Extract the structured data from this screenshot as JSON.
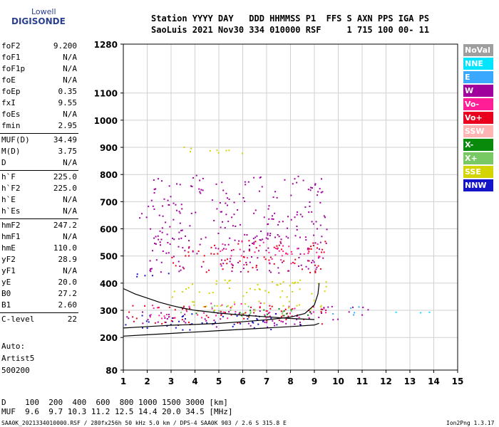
{
  "logo": {
    "line1": "Lowell",
    "line2": "DIGISONDE"
  },
  "header": {
    "line1": "Station YYYY DAY   DDD HHMMSS P1  FFS S AXN PPS IGA PS",
    "line2": "SaoLuis 2021 Nov30 334 010000 RSF     1 715 100 00- 11"
  },
  "params": [
    {
      "name": "foF2",
      "value": "9.200"
    },
    {
      "name": "foF1",
      "value": "N/A"
    },
    {
      "name": "foF1p",
      "value": "N/A"
    },
    {
      "name": "foE",
      "value": "N/A"
    },
    {
      "name": "foEp",
      "value": "0.35"
    },
    {
      "name": "fxI",
      "value": "9.55"
    },
    {
      "name": "foEs",
      "value": "N/A"
    },
    {
      "name": "fmin",
      "value": "2.95"
    },
    {
      "name": "MUF(D)",
      "value": "34.49"
    },
    {
      "name": "M(D)",
      "value": "3.75"
    },
    {
      "name": "D",
      "value": "N/A"
    },
    {
      "name": "h`F",
      "value": "225.0"
    },
    {
      "name": "h`F2",
      "value": "225.0"
    },
    {
      "name": "h`E",
      "value": "N/A"
    },
    {
      "name": "h`Es",
      "value": "N/A"
    },
    {
      "name": "hmF2",
      "value": "247.2"
    },
    {
      "name": "hmF1",
      "value": "N/A"
    },
    {
      "name": "hmE",
      "value": "110.0"
    },
    {
      "name": "yF2",
      "value": "28.9"
    },
    {
      "name": "yF1",
      "value": "N/A"
    },
    {
      "name": "yE",
      "value": "20.0"
    },
    {
      "name": "B0",
      "value": "27.2"
    },
    {
      "name": "B1",
      "value": "2.60"
    },
    {
      "name": "C-level",
      "value": "22"
    }
  ],
  "auto": {
    "l1": "Auto:",
    "l2": "Artist5",
    "l3": "500200"
  },
  "legend": [
    {
      "label": "NoVal",
      "color": "#9e9e9e"
    },
    {
      "label": "NNE",
      "color": "#00e5ff"
    },
    {
      "label": "E",
      "color": "#3aa8ff"
    },
    {
      "label": "W",
      "color": "#a0009c"
    },
    {
      "label": "Vo-",
      "color": "#ff1e96"
    },
    {
      "label": "Vo+",
      "color": "#e8001e"
    },
    {
      "label": "SSW",
      "color": "#ffb4b4"
    },
    {
      "label": "X-",
      "color": "#0a8a0a"
    },
    {
      "label": "X+",
      "color": "#78c864"
    },
    {
      "label": "SSE",
      "color": "#d4d400"
    },
    {
      "label": "NNW",
      "color": "#1414c8"
    }
  ],
  "bottom": {
    "d_row": "D    100  200  400  600  800 1000 1500 3000 [km]",
    "muf_row": "MUF  9.6  9.7 10.3 11.2 12.5 14.4 20.0 34.5 [MHz]"
  },
  "footer": {
    "left": "SAA0K_2021334010000.RSF / 280fx256h 50 kHz 5.0 km / DPS-4 SAA0K 903 / 2.6 S 315.8 E",
    "right": "Ion2Png 1.3.17"
  },
  "chart_data": {
    "type": "scatter",
    "xlim": [
      1,
      15
    ],
    "ylim": [
      80,
      1280
    ],
    "x_ticks": [
      1,
      2,
      3,
      4,
      5,
      6,
      7,
      8,
      9,
      10,
      11,
      12,
      13,
      14,
      15
    ],
    "y_ticks": [
      80,
      200,
      300,
      400,
      500,
      600,
      700,
      800,
      900,
      1000,
      1100,
      1280
    ],
    "grid": true,
    "traces": [
      {
        "color": "#000000",
        "x": [
          1,
          2,
          3,
          4,
          5,
          6,
          7,
          8,
          8.5,
          9,
          9.2
        ],
        "y": [
          205,
          210,
          215,
          220,
          225,
          230,
          235,
          240,
          243,
          246,
          252
        ]
      },
      {
        "color": "#000000",
        "x": [
          1,
          2,
          3,
          4,
          5,
          6,
          7,
          8,
          8.6,
          9,
          9.15,
          9.2
        ],
        "y": [
          235,
          240,
          245,
          248,
          252,
          258,
          265,
          275,
          288,
          320,
          360,
          400
        ]
      },
      {
        "color": "#000000",
        "x": [
          1,
          1.5,
          2,
          2.5,
          3,
          3.5,
          4,
          5,
          6,
          7,
          8,
          9
        ],
        "y": [
          380,
          360,
          345,
          330,
          318,
          308,
          300,
          290,
          282,
          276,
          270,
          266
        ]
      }
    ],
    "clusters": [
      {
        "color": "#a0009c",
        "x": [
          1,
          10
        ],
        "y": [
          240,
          300
        ]
      },
      {
        "color": "#1414c8",
        "x": [
          1,
          9
        ],
        "y": [
          230,
          290
        ]
      },
      {
        "color": "#e8001e",
        "x": [
          1,
          9.5
        ],
        "y": [
          250,
          320
        ]
      },
      {
        "color": "#ff1e96",
        "x": [
          2,
          9.5
        ],
        "y": [
          270,
          330
        ]
      },
      {
        "color": "#d4d400",
        "x": [
          3,
          9.5
        ],
        "y": [
          300,
          340
        ]
      },
      {
        "color": "#0a8a0a",
        "x": [
          4,
          9
        ],
        "y": [
          280,
          310
        ]
      },
      {
        "color": "#78c864",
        "x": [
          3,
          8.5
        ],
        "y": [
          290,
          320
        ]
      },
      {
        "color": "#a0009c",
        "x": [
          9,
          11.5
        ],
        "y": [
          280,
          320
        ]
      },
      {
        "color": "#3aa8ff",
        "x": [
          9.5,
          11
        ],
        "y": [
          285,
          315
        ]
      },
      {
        "color": "#00e5ff",
        "x": [
          12,
          14
        ],
        "y": [
          290,
          305
        ]
      },
      {
        "color": "#1414c8",
        "x": [
          1,
          3
        ],
        "y": [
          420,
          445
        ]
      },
      {
        "color": "#e8001e",
        "x": [
          3,
          9.5
        ],
        "y": [
          440,
          560
        ]
      },
      {
        "color": "#a0009c",
        "x": [
          2,
          9.5
        ],
        "y": [
          440,
          580
        ]
      },
      {
        "color": "#ff1e96",
        "x": [
          5,
          9.5
        ],
        "y": [
          470,
          560
        ]
      },
      {
        "color": "#a0009c",
        "x": [
          2,
          9.5
        ],
        "y": [
          560,
          800
        ]
      },
      {
        "color": "#d4d400",
        "x": [
          3,
          9.5
        ],
        "y": [
          350,
          420
        ]
      },
      {
        "color": "#a0009c",
        "x": [
          1,
          3
        ],
        "y": [
          640,
          660
        ]
      },
      {
        "color": "#d4d400",
        "x": [
          3,
          6
        ],
        "y": [
          880,
          910
        ]
      }
    ]
  }
}
